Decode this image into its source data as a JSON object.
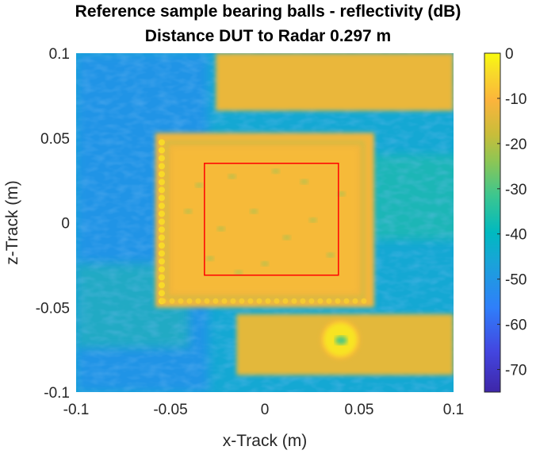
{
  "chart_data": {
    "type": "heatmap",
    "title": "Reference sample bearing balls - reflectivity (dB)",
    "subtitle": "Distance DUT to Radar 0.297 m",
    "xlabel": "x-Track (m)",
    "ylabel": "z-Track (m)",
    "xlim": [
      -0.1,
      0.1
    ],
    "ylim": [
      -0.1,
      0.1
    ],
    "xticks": [
      -0.1,
      -0.05,
      0,
      0.05,
      0.1
    ],
    "xtick_labels": [
      "-0.1",
      "-0.05",
      "0",
      "0.05",
      "0.1"
    ],
    "yticks": [
      -0.1,
      -0.05,
      0,
      0.05,
      0.1
    ],
    "ytick_labels": [
      "-0.1",
      "-0.05",
      "0",
      "0.05",
      "0.1"
    ],
    "colormap": "parula",
    "clim": [
      -75,
      0
    ],
    "colorbar": {
      "ticks": [
        0,
        -10,
        -20,
        -30,
        -40,
        -50,
        -60,
        -70
      ],
      "tick_labels": [
        "0",
        "-10",
        "-20",
        "-30",
        "-40",
        "-50",
        "-60",
        "-70"
      ],
      "location": "right"
    },
    "background_level_db": -45,
    "regions": [
      {
        "name": "sample-plate",
        "x": [
          -0.058,
          0.058
        ],
        "z": [
          -0.05,
          0.053
        ],
        "level_db": -12,
        "note": "bright rectangular plate with dotted bearing-ball border"
      },
      {
        "name": "upper-right-band",
        "x": [
          -0.026,
          0.1
        ],
        "z": [
          0.066,
          0.1
        ],
        "level_db": -13
      },
      {
        "name": "lower-band",
        "x": [
          -0.015,
          0.1
        ],
        "z": [
          -0.09,
          -0.054
        ],
        "level_db": -14
      },
      {
        "name": "ring-reflector",
        "x_center": 0.04,
        "z_center": -0.069,
        "radius": 0.009,
        "level_db": -3
      }
    ],
    "roi_rectangle": {
      "x": [
        -0.032,
        0.039
      ],
      "z": [
        -0.031,
        0.035
      ],
      "color": "#ff0000"
    },
    "grid": false
  }
}
